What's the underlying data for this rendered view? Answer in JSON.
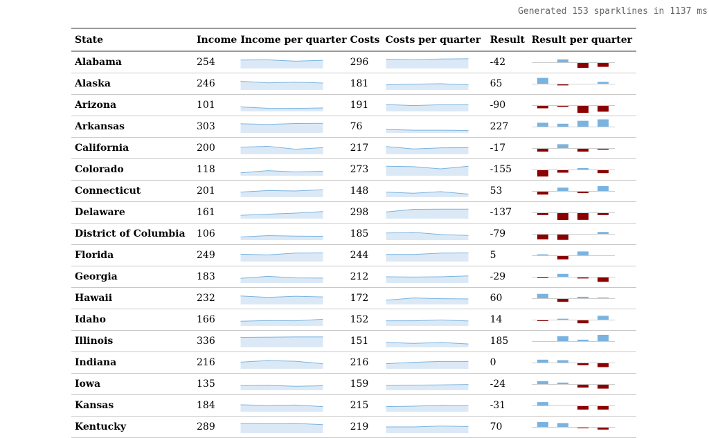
{
  "status": "Generated 153 sparklines in 1137 ms",
  "headers": {
    "state": "State",
    "income": "Income",
    "income_q": "Income per quarter",
    "costs": "Costs",
    "costs_q": "Costs per quarter",
    "result": "Result",
    "result_q": "Result per quarter"
  },
  "colors": {
    "line": "#7ab3e0",
    "fill": "#dbe9f7",
    "positive": "#7ab3e0",
    "negative": "#8b0000"
  },
  "rows": [
    {
      "state": "Alabama",
      "income": "254",
      "costs": "296",
      "result": "-42",
      "income_q": [
        70,
        72,
        60,
        68
      ],
      "costs_q": [
        78,
        72,
        80,
        82
      ],
      "result_q": [
        0,
        6,
        -10,
        -8
      ]
    },
    {
      "state": "Alaska",
      "income": "246",
      "costs": "181",
      "result": "65",
      "income_q": [
        72,
        58,
        64,
        56
      ],
      "costs_q": [
        40,
        46,
        50,
        40
      ],
      "result_q": [
        12,
        -2,
        0,
        4
      ]
    },
    {
      "state": "Arizona",
      "income": "101",
      "costs": "191",
      "result": "-90",
      "income_q": [
        34,
        22,
        21,
        25
      ],
      "costs_q": [
        56,
        46,
        54,
        55
      ],
      "result_q": [
        -5,
        -2,
        -16,
        -12
      ]
    },
    {
      "state": "Arkansas",
      "income": "303",
      "costs": "76",
      "result": "227",
      "income_q": [
        76,
        70,
        78,
        80
      ],
      "costs_q": [
        24,
        18,
        18,
        16
      ],
      "result_q": [
        8,
        6,
        12,
        15
      ]
    },
    {
      "state": "California",
      "income": "200",
      "costs": "217",
      "result": "-17",
      "income_q": [
        58,
        66,
        40,
        54
      ],
      "costs_q": [
        64,
        42,
        52,
        53
      ],
      "result_q": [
        -6,
        8,
        -6,
        -2
      ]
    },
    {
      "state": "Colorado",
      "income": "118",
      "costs": "273",
      "result": "-155",
      "income_q": [
        20,
        40,
        28,
        34
      ],
      "costs_q": [
        80,
        76,
        56,
        80
      ],
      "result_q": [
        -13,
        -5,
        3,
        -6
      ]
    },
    {
      "state": "Connecticut",
      "income": "201",
      "costs": "148",
      "result": "53",
      "income_q": [
        40,
        54,
        50,
        62
      ],
      "costs_q": [
        40,
        30,
        44,
        22
      ],
      "result_q": [
        -6,
        7,
        -3,
        10
      ]
    },
    {
      "state": "Delaware",
      "income": "161",
      "costs": "298",
      "result": "-137",
      "income_q": [
        24,
        34,
        44,
        58
      ],
      "costs_q": [
        54,
        78,
        80,
        80
      ],
      "result_q": [
        -4,
        -18,
        -14,
        -4
      ]
    },
    {
      "state": "District of Columbia",
      "income": "106",
      "costs": "185",
      "result": "-79",
      "income_q": [
        22,
        34,
        30,
        28
      ],
      "costs_q": [
        58,
        64,
        44,
        36
      ],
      "result_q": [
        -10,
        -11,
        0,
        4
      ]
    },
    {
      "state": "Florida",
      "income": "249",
      "costs": "244",
      "result": "5",
      "income_q": [
        60,
        54,
        70,
        72
      ],
      "costs_q": [
        58,
        58,
        70,
        72
      ],
      "result_q": [
        2,
        -7,
        8,
        0
      ]
    },
    {
      "state": "Georgia",
      "income": "183",
      "costs": "212",
      "result": "-29",
      "income_q": [
        36,
        54,
        40,
        38
      ],
      "costs_q": [
        50,
        48,
        50,
        58
      ],
      "result_q": [
        -1,
        6,
        -2,
        -9
      ]
    },
    {
      "state": "Hawaii",
      "income": "232",
      "costs": "172",
      "result": "60",
      "income_q": [
        70,
        58,
        68,
        62
      ],
      "costs_q": [
        32,
        52,
        46,
        44
      ],
      "result_q": [
        9,
        -6,
        3,
        1
      ]
    },
    {
      "state": "Idaho",
      "income": "166",
      "costs": "152",
      "result": "14",
      "income_q": [
        36,
        42,
        40,
        54
      ],
      "costs_q": [
        40,
        40,
        48,
        38
      ],
      "result_q": [
        -1,
        2,
        -6,
        8
      ]
    },
    {
      "state": "Illinois",
      "income": "336",
      "costs": "151",
      "result": "185",
      "income_q": [
        84,
        86,
        88,
        88
      ],
      "costs_q": [
        38,
        30,
        38,
        24
      ],
      "result_q": [
        0,
        10,
        3,
        13
      ]
    },
    {
      "state": "Indiana",
      "income": "216",
      "costs": "216",
      "result": "0",
      "income_q": [
        54,
        68,
        62,
        40
      ],
      "costs_q": [
        40,
        52,
        60,
        60
      ],
      "result_q": [
        6,
        5,
        -4,
        -8
      ]
    },
    {
      "state": "Iowa",
      "income": "135",
      "costs": "159",
      "result": "-24",
      "income_q": [
        36,
        38,
        30,
        34
      ],
      "costs_q": [
        36,
        40,
        42,
        46
      ],
      "result_q": [
        6,
        3,
        -6,
        -8
      ]
    },
    {
      "state": "Kansas",
      "income": "184",
      "costs": "215",
      "result": "-31",
      "income_q": [
        56,
        50,
        54,
        40
      ],
      "costs_q": [
        40,
        44,
        52,
        48
      ],
      "result_q": [
        7,
        0,
        -7,
        -7
      ]
    },
    {
      "state": "Kentucky",
      "income": "289",
      "costs": "219",
      "result": "70",
      "income_q": [
        82,
        80,
        82,
        70
      ],
      "costs_q": [
        50,
        50,
        58,
        54
      ],
      "result_q": [
        10,
        8,
        -1,
        -4
      ]
    }
  ]
}
